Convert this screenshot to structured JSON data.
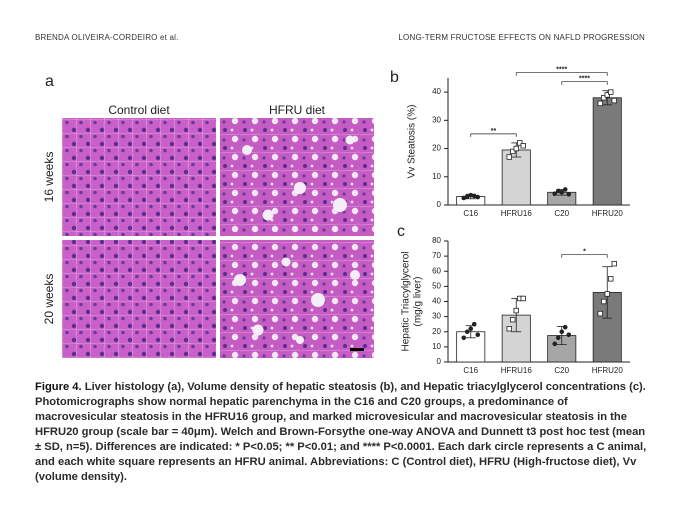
{
  "header": {
    "left": "BRENDA OLIVEIRA-CORDEIRO et al.",
    "right": "LONG-TERM FRUCTOSE EFFECTS ON NAFLD PROGRESSION"
  },
  "panel_a": {
    "label": "a",
    "columns": [
      "Control diet",
      "HFRU diet"
    ],
    "rows": [
      "16 weeks",
      "20 weeks"
    ]
  },
  "chart_data": [
    {
      "type": "bar",
      "label": "b",
      "ylabel": [
        "Vv Steatosis (%)"
      ],
      "categories": [
        "C16",
        "HFRU16",
        "C20",
        "HFRU20"
      ],
      "values": [
        3,
        19.5,
        4.5,
        38
      ],
      "errors": [
        0.8,
        2.5,
        1,
        2.5
      ],
      "points": [
        [
          2.5,
          3,
          3.5,
          3.2,
          2.8
        ],
        [
          17,
          19,
          20,
          22,
          21
        ],
        [
          4,
          5,
          4.5,
          5.5,
          3.8
        ],
        [
          36,
          38,
          39,
          40,
          37
        ]
      ],
      "markers": [
        "circle",
        "square",
        "circle",
        "square"
      ],
      "colors": [
        "#ffffff",
        "#d4d4d4",
        "#a6a6a6",
        "#7a7a7a"
      ],
      "ylim": [
        0,
        45
      ],
      "yticks": [
        0,
        10,
        20,
        30,
        40
      ],
      "annotations": [
        {
          "text": "**",
          "between": [
            "C16",
            "HFRU16"
          ]
        },
        {
          "text": "****",
          "between": [
            "C20",
            "HFRU20"
          ]
        },
        {
          "text": "****",
          "between": [
            "HFRU16",
            "HFRU20"
          ]
        }
      ]
    },
    {
      "type": "bar",
      "label": "c",
      "ylabel": [
        "Hepatic Triacylglycerol",
        "(mg/g liver)"
      ],
      "categories": [
        "C16",
        "HFRU16",
        "C20",
        "HFRU20"
      ],
      "values": [
        20,
        31,
        17.5,
        46
      ],
      "errors": [
        4,
        11,
        6,
        17
      ],
      "points": [
        [
          16,
          20,
          22,
          25,
          18
        ],
        [
          22,
          28,
          34,
          42,
          42
        ],
        [
          12,
          16,
          20,
          23,
          18
        ],
        [
          32,
          40,
          45,
          55,
          65
        ]
      ],
      "markers": [
        "circle",
        "square",
        "circle",
        "square"
      ],
      "colors": [
        "#ffffff",
        "#d4d4d4",
        "#a6a6a6",
        "#7a7a7a"
      ],
      "ylim": [
        0,
        80
      ],
      "yticks": [
        0,
        10,
        20,
        30,
        40,
        50,
        60,
        70,
        80
      ],
      "annotations": [
        {
          "text": "*",
          "between": [
            "C20",
            "HFRU20"
          ]
        }
      ]
    }
  ],
  "caption": {
    "label": "Figure 4.",
    "text": "Liver histology (a), Volume density of hepatic steatosis (b), and Hepatic triacylglycerol concentrations (c). Photomicrographs show normal hepatic parenchyma in the C16 and C20 groups, a predominance of macrovesicular steatosis in the HFRU16 group, and marked microvesicular and macrovesicular steatosis in the HFRU20 group (scale bar = 40μm). Welch and Brown-Forsythe one-way ANOVA and Dunnett t3 post hoc test (mean ± SD, n=5). Differences are indicated: * P<0.05; ** P<0.01; and **** P<0.0001. Each dark circle represents a C animal, and each white square represents an HFRU animal. Abbreviations: C (Control diet), HFRU (High-fructose diet), Vv (volume density)."
  }
}
